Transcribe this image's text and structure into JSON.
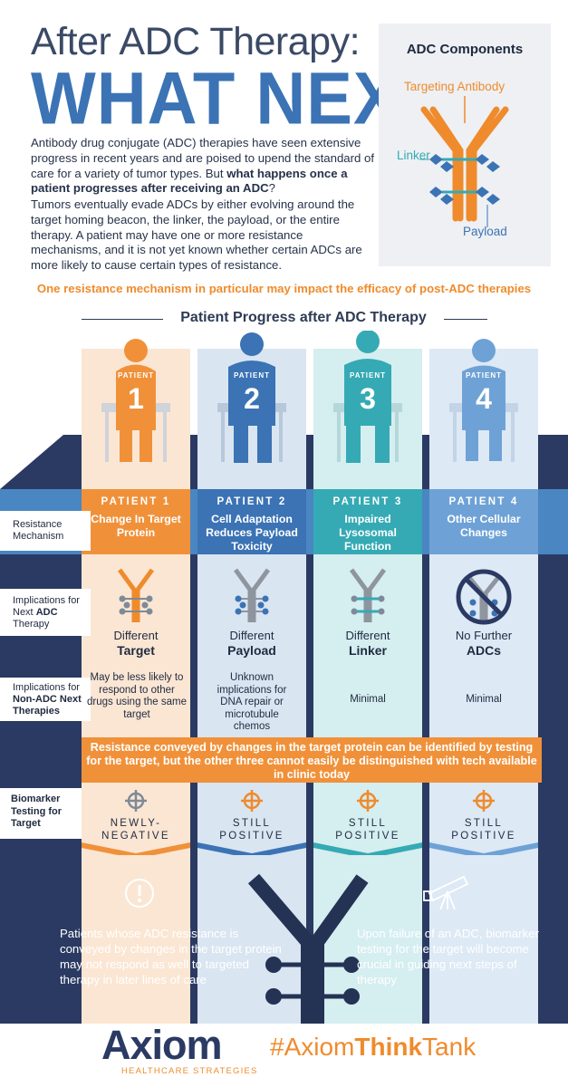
{
  "title": {
    "line1": "After ADC Therapy:",
    "line2": "WHAT NEXT?"
  },
  "intro": {
    "p1_a": "Antibody drug conjugate (ADC) therapies have seen extensive progress in recent years and are poised to upend the standard of care for a variety of tumor types. But ",
    "p1_bold": "what happens once a patient progresses after receiving an ADC",
    "p1_end": "?",
    "p2": "Tumors eventually evade ADCs by either evolving around the target homing beacon, the linker, the payload, or the entire therapy.  A patient may have one or more resistance mechanisms, and it is not yet known whether certain ADCs are more likely to cause certain types of resistance."
  },
  "components": {
    "title": "ADC Components",
    "antibody": "Targeting Antibody",
    "linker": "Linker",
    "payload": "Payload"
  },
  "highlight": "One resistance mechanism in particular may impact the efficacy of post-ADC therapies",
  "progress_header": "Patient Progress after ADC Therapy",
  "patients": [
    {
      "chair_label": "PATIENT",
      "number": "1",
      "header": "PATIENT 1",
      "mechanism": "Change In Target Protein",
      "impl_line1": "Different",
      "impl_line2": "Target",
      "non_adc": "May be less likely to respond to other drugs using the same target",
      "biomarker": "NEWLY-NEGATIVE",
      "color": "#f0913a"
    },
    {
      "chair_label": "PATIENT",
      "number": "2",
      "header": "PATIENT 2",
      "mechanism": "Cell Adaptation Reduces Payload Toxicity",
      "impl_line1": "Different",
      "impl_line2": "Payload",
      "non_adc": "Unknown implications for DNA repair or microtubule chemos",
      "biomarker": "STILL POSITIVE",
      "color": "#3b73b5"
    },
    {
      "chair_label": "PATIENT",
      "number": "3",
      "header": "PATIENT 3",
      "mechanism": "Impaired Lysosomal Function",
      "impl_line1": "Different",
      "impl_line2": "Linker",
      "non_adc": "Minimal",
      "biomarker": "STILL POSITIVE",
      "color": "#35aab4"
    },
    {
      "chair_label": "PATIENT",
      "number": "4",
      "header": "PATIENT 4",
      "mechanism": "Other Cellular Changes",
      "impl_line1": "No Further",
      "impl_line2": "ADCs",
      "non_adc": "Minimal",
      "biomarker": "STILL POSITIVE",
      "color": "#6ea2d6"
    }
  ],
  "row_labels": {
    "mechanism": "Resistance Mechanism",
    "next_adc_a": "Implications for Next ",
    "next_adc_b": "ADC",
    "next_adc_c": " Therapy",
    "non_adc_a": "Implications for ",
    "non_adc_b": "Non-ADC Next Therapies",
    "biomarker": "Biomarker Testing for Target"
  },
  "banner": "Resistance conveyed by changes in the target protein can be identified by testing for the target, but the other three  cannot easily be distinguished with tech available in clinic today",
  "bottom": {
    "left": "Patients whose ADC resistance is conveyed by changes in the target protein may not respond as well to targeted therapy in later lines of care",
    "right": "Upon failure of an ADC, biomarker testing for the target will become crucial in guiding next steps of therapy"
  },
  "footer": {
    "brand": "Axiom",
    "brand_sub": "HEALTHCARE STRATEGIES",
    "hashtag_a": "#Axiom",
    "hashtag_b": "Think",
    "hashtag_c": "Tank"
  }
}
